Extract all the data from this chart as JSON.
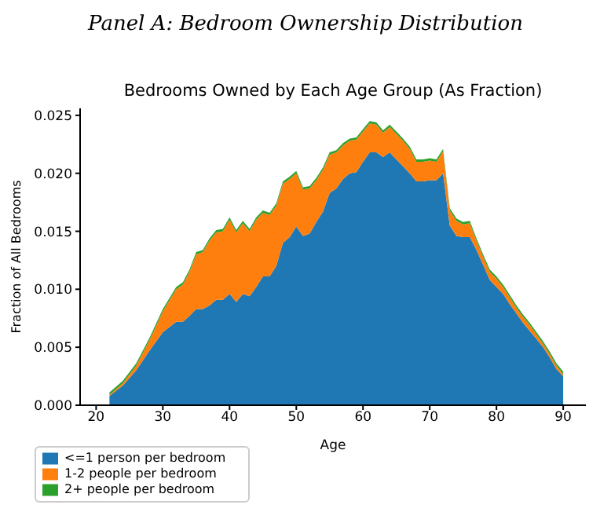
{
  "chart_data": {
    "type": "area",
    "title": "Panel A: Bedroom Ownership Distribution",
    "subtitle": "Bedrooms Owned by Each Age Group (As Fraction)",
    "xlabel": "Age",
    "ylabel": "Fraction of All Bedrooms",
    "stacked": true,
    "legend": "bottom left",
    "grid": false,
    "marker": "none",
    "x": [
      22,
      24,
      26,
      28,
      30,
      32,
      33,
      34,
      35,
      36,
      37,
      38,
      39,
      40,
      41,
      42,
      43,
      44,
      45,
      46,
      47,
      48,
      49,
      50,
      51,
      52,
      53,
      54,
      55,
      56,
      57,
      58,
      59,
      60,
      61,
      62,
      63,
      64,
      65,
      66,
      67,
      68,
      69,
      70,
      71,
      72,
      73,
      74,
      75,
      76,
      77,
      78,
      79,
      80,
      81,
      82,
      83,
      84,
      85,
      86,
      87,
      88,
      89,
      90
    ],
    "series": [
      {
        "name": "<=1 person per bedroom",
        "color": "#1f77b4",
        "values": [
          0.0008,
          0.0017,
          0.003,
          0.0047,
          0.0063,
          0.0072,
          0.0072,
          0.0077,
          0.0083,
          0.0083,
          0.0086,
          0.0091,
          0.0091,
          0.0096,
          0.0089,
          0.0096,
          0.0094,
          0.0102,
          0.0111,
          0.0111,
          0.012,
          0.014,
          0.0145,
          0.0154,
          0.0146,
          0.0148,
          0.0158,
          0.0167,
          0.0183,
          0.0187,
          0.0195,
          0.02,
          0.0201,
          0.021,
          0.0218,
          0.0218,
          0.0214,
          0.0218,
          0.0212,
          0.0206,
          0.02,
          0.0193,
          0.0193,
          0.0194,
          0.0194,
          0.02,
          0.0155,
          0.0146,
          0.0145,
          0.0145,
          0.0134,
          0.0121,
          0.0108,
          0.0102,
          0.0096,
          0.0087,
          0.0079,
          0.0071,
          0.0064,
          0.0057,
          0.005,
          0.0041,
          0.0031,
          0.0025
        ]
      },
      {
        "name": "1-2 people per bedroom",
        "color": "#ff7f0e",
        "values": [
          0.0001,
          0.0002,
          0.0004,
          0.0009,
          0.0018,
          0.0028,
          0.0032,
          0.0038,
          0.0047,
          0.0049,
          0.0056,
          0.0058,
          0.0059,
          0.0064,
          0.006,
          0.0061,
          0.0056,
          0.0058,
          0.0055,
          0.0053,
          0.0052,
          0.0051,
          0.005,
          0.0046,
          0.004,
          0.0039,
          0.0036,
          0.0036,
          0.0033,
          0.0031,
          0.0029,
          0.0028,
          0.0028,
          0.0026,
          0.0025,
          0.0024,
          0.0021,
          0.0022,
          0.0022,
          0.0022,
          0.0021,
          0.0017,
          0.0017,
          0.0017,
          0.0016,
          0.0019,
          0.0013,
          0.0013,
          0.0011,
          0.0012,
          0.0008,
          0.0007,
          0.0007,
          0.0007,
          0.0006,
          0.0006,
          0.0005,
          0.0005,
          0.0005,
          0.0004,
          0.0003,
          0.0003,
          0.0003,
          0.0002
        ]
      },
      {
        "name": "2+ people per bedroom",
        "color": "#2ca02c",
        "values": [
          0.0002,
          0.0002,
          0.0002,
          0.0002,
          0.0002,
          0.0002,
          0.0002,
          0.0002,
          0.0002,
          0.0002,
          0.0002,
          0.0002,
          0.0002,
          0.0002,
          0.0002,
          0.0002,
          0.0002,
          0.0002,
          0.0002,
          0.0002,
          0.0002,
          0.0002,
          0.0002,
          0.0002,
          0.0002,
          0.0002,
          0.0002,
          0.0002,
          0.0002,
          0.0002,
          0.0002,
          0.0002,
          0.0002,
          0.0002,
          0.0002,
          0.0002,
          0.0002,
          0.0002,
          0.0002,
          0.0002,
          0.0002,
          0.0002,
          0.0002,
          0.0002,
          0.0002,
          0.0002,
          0.0002,
          0.0002,
          0.0002,
          0.0002,
          0.0002,
          0.0002,
          0.0002,
          0.0002,
          0.0002,
          0.0002,
          0.0002,
          0.0002,
          0.0002,
          0.0002,
          0.0002,
          0.0002,
          0.0002,
          0.0002
        ]
      }
    ],
    "xlim": [
      17.6,
      93.4
    ],
    "xticks": [
      20,
      30,
      40,
      50,
      60,
      70,
      80,
      90
    ],
    "ylim": [
      0,
      0.0256
    ],
    "yticks": [
      {
        "value": 0,
        "label": "0.000"
      },
      {
        "value": 0.005,
        "label": "0.005"
      },
      {
        "value": 0.01,
        "label": "0.010"
      },
      {
        "value": 0.015,
        "label": "0.015"
      },
      {
        "value": 0.02,
        "label": "0.020"
      },
      {
        "value": 0.025,
        "label": "0.025"
      }
    ]
  }
}
